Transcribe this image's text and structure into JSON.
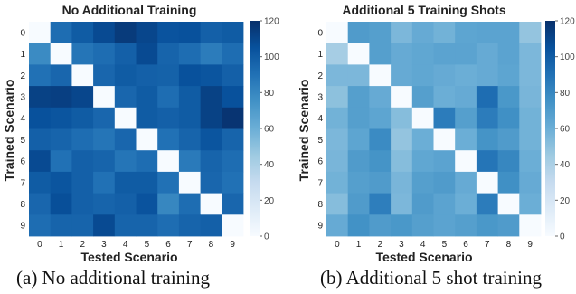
{
  "chart_data": [
    {
      "type": "heatmap",
      "title": "No Additional Training",
      "xlabel": "Tested Scenario",
      "ylabel": "Trained Scenario",
      "x_categories": [
        "0",
        "1",
        "2",
        "3",
        "4",
        "5",
        "6",
        "7",
        "8",
        "9"
      ],
      "y_categories": [
        "0",
        "1",
        "2",
        "3",
        "4",
        "5",
        "6",
        "7",
        "8",
        "9"
      ],
      "colorbar": {
        "min": 0,
        "max": 120,
        "ticks": [
          0,
          20,
          40,
          60,
          80,
          100,
          120
        ]
      },
      "colormap": "Blues",
      "values": [
        [
          0,
          92,
          100,
          108,
          115,
          110,
          104,
          105,
          98,
          100
        ],
        [
          78,
          0,
          88,
          92,
          98,
          108,
          96,
          92,
          85,
          92
        ],
        [
          90,
          95,
          0,
          95,
          100,
          98,
          97,
          105,
          103,
          98
        ],
        [
          112,
          113,
          110,
          0,
          95,
          100,
          92,
          100,
          112,
          105
        ],
        [
          105,
          103,
          100,
          95,
          0,
          100,
          98,
          100,
          112,
          118
        ],
        [
          98,
          96,
          92,
          88,
          95,
          0,
          90,
          96,
          103,
          96
        ],
        [
          108,
          90,
          98,
          96,
          88,
          92,
          0,
          86,
          96,
          92
        ],
        [
          100,
          103,
          98,
          90,
          100,
          100,
          90,
          0,
          95,
          90
        ],
        [
          95,
          106,
          98,
          96,
          98,
          104,
          80,
          92,
          0,
          95
        ],
        [
          92,
          96,
          96,
          108,
          96,
          96,
          92,
          96,
          98,
          0
        ]
      ]
    },
    {
      "type": "heatmap",
      "title": "Additional 5 Training Shots",
      "xlabel": "Tested Scenario",
      "ylabel": "Trained Scenario",
      "x_categories": [
        "0",
        "1",
        "2",
        "3",
        "4",
        "5",
        "6",
        "7",
        "8",
        "9"
      ],
      "y_categories": [
        "0",
        "1",
        "2",
        "3",
        "4",
        "5",
        "6",
        "7",
        "8",
        "9"
      ],
      "colorbar": {
        "min": 0,
        "max": 120,
        "ticks": [
          0,
          20,
          40,
          60,
          80,
          100,
          120
        ]
      },
      "colormap": "Blues",
      "values": [
        [
          0,
          70,
          68,
          55,
          62,
          58,
          65,
          66,
          66,
          48
        ],
        [
          42,
          0,
          68,
          62,
          64,
          66,
          66,
          62,
          66,
          55
        ],
        [
          55,
          55,
          0,
          62,
          64,
          62,
          60,
          62,
          65,
          55
        ],
        [
          50,
          68,
          62,
          0,
          68,
          60,
          62,
          92,
          72,
          56
        ],
        [
          58,
          68,
          65,
          52,
          0,
          85,
          68,
          85,
          76,
          58
        ],
        [
          55,
          65,
          78,
          48,
          60,
          0,
          60,
          74,
          70,
          58
        ],
        [
          56,
          70,
          74,
          52,
          64,
          66,
          0,
          88,
          80,
          60
        ],
        [
          58,
          68,
          70,
          56,
          68,
          70,
          62,
          0,
          76,
          62
        ],
        [
          52,
          70,
          84,
          55,
          70,
          66,
          60,
          85,
          0,
          60
        ],
        [
          62,
          75,
          70,
          72,
          68,
          66,
          68,
          72,
          70,
          0
        ]
      ]
    }
  ],
  "captions": [
    "(a) No additional training",
    "(b) Additional 5 shot training"
  ]
}
